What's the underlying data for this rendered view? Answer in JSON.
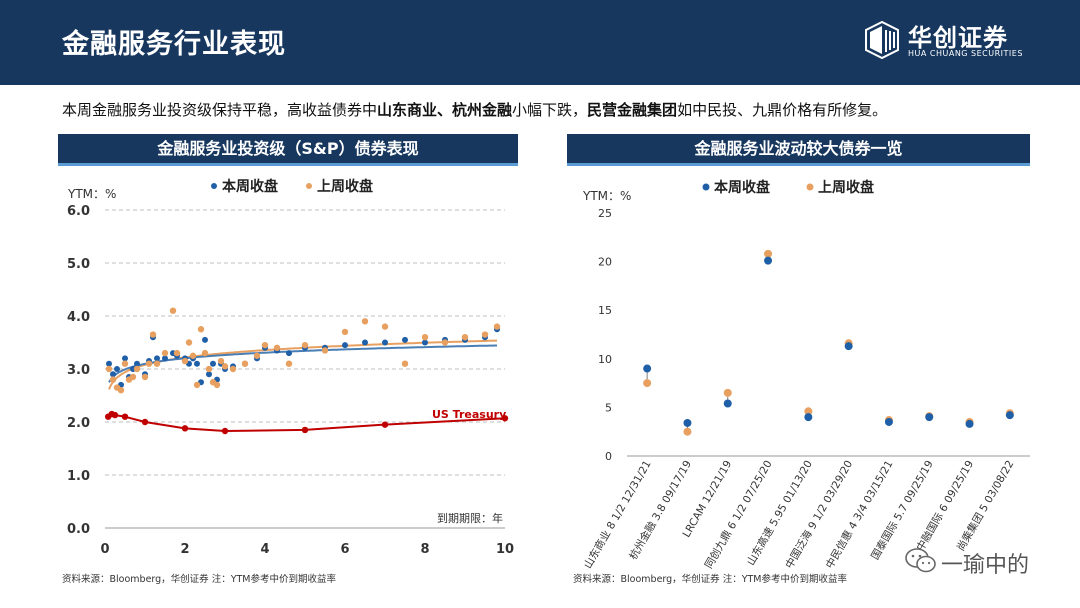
{
  "header": {
    "title": "金融服务行业表现",
    "logo_cn": "华创证券",
    "logo_en": "HUA CHUANG SECURITIES"
  },
  "summary": {
    "p1": "本周金融服务业投资级保持平稳，高收益债券中",
    "b1": "山东商业、杭州金融",
    "p2": "小幅下跌，",
    "b2": "民营金融集团",
    "p3": "如中民投、九鼎价格有所修复。"
  },
  "left_panel": {
    "title": "金融服务业投资级（S&P）债券表现",
    "source": "资料来源：Bloomberg，华创证券    注：YTM参考中价到期收益率"
  },
  "right_panel": {
    "title": "金融服务业波动较大债券一览",
    "source": "资料来源：Bloomberg，华创证券    注：YTM参考中价到期收益率"
  },
  "watermark": "一瑜中的",
  "chart_data": [
    {
      "type": "scatter",
      "ylabel": "YTM：%",
      "xlabel": "到期期限：年",
      "xlim": [
        0,
        10
      ],
      "ylim": [
        0,
        6
      ],
      "xticks": [
        "0",
        "2",
        "4",
        "6",
        "8",
        "10"
      ],
      "yticks": [
        "0.0",
        "1.0",
        "2.0",
        "3.0",
        "4.0",
        "5.0",
        "6.0"
      ],
      "legend_position": "top",
      "colors": {
        "this_week": "#1f5fa8",
        "last_week": "#e8a060",
        "treasury": "#c00000",
        "fit_this": "#4a7fb5",
        "fit_last": "#e8a060"
      },
      "series": [
        {
          "name": "本周收盘",
          "x": [
            0.1,
            0.2,
            0.3,
            0.4,
            0.5,
            0.6,
            0.7,
            0.8,
            1.0,
            1.1,
            1.2,
            1.3,
            1.5,
            1.7,
            1.8,
            2.0,
            2.1,
            2.2,
            2.3,
            2.4,
            2.5,
            2.6,
            2.7,
            2.8,
            2.9,
            3.0,
            3.2,
            3.5,
            3.8,
            4.0,
            4.3,
            4.6,
            5.0,
            5.5,
            6.0,
            6.5,
            7.0,
            7.5,
            8.0,
            8.5,
            9.0,
            9.5,
            9.8
          ],
          "values": [
            3.1,
            2.9,
            3.0,
            2.7,
            3.2,
            2.85,
            3.0,
            3.1,
            2.9,
            3.15,
            3.6,
            3.2,
            3.2,
            3.3,
            3.25,
            3.2,
            3.1,
            3.2,
            3.1,
            2.75,
            3.55,
            2.9,
            3.1,
            2.8,
            3.1,
            3.0,
            3.05,
            3.1,
            3.2,
            3.4,
            3.35,
            3.3,
            3.4,
            3.4,
            3.45,
            3.5,
            3.5,
            3.55,
            3.5,
            3.55,
            3.55,
            3.6,
            3.75
          ]
        },
        {
          "name": "上周收盘",
          "x": [
            0.1,
            0.2,
            0.3,
            0.4,
            0.5,
            0.6,
            0.7,
            0.8,
            1.0,
            1.1,
            1.2,
            1.3,
            1.5,
            1.7,
            1.8,
            2.0,
            2.1,
            2.2,
            2.3,
            2.4,
            2.5,
            2.6,
            2.7,
            2.8,
            2.9,
            3.0,
            3.2,
            3.5,
            3.8,
            4.0,
            4.3,
            4.6,
            5.0,
            5.5,
            6.0,
            6.5,
            7.0,
            7.5,
            8.0,
            8.5,
            9.0,
            9.5,
            9.8
          ],
          "values": [
            3.0,
            2.8,
            2.65,
            2.6,
            3.1,
            2.8,
            2.85,
            3.0,
            2.85,
            3.1,
            3.65,
            3.1,
            3.3,
            4.1,
            3.3,
            3.15,
            3.5,
            3.25,
            2.7,
            3.75,
            3.3,
            3.0,
            2.75,
            2.7,
            3.15,
            3.05,
            3.0,
            3.1,
            3.25,
            3.45,
            3.4,
            3.1,
            3.45,
            3.35,
            3.7,
            3.9,
            3.8,
            3.1,
            3.6,
            3.5,
            3.6,
            3.65,
            3.8
          ]
        },
        {
          "name": "US Treasury",
          "x": [
            0.08,
            0.17,
            0.25,
            0.5,
            1,
            2,
            3,
            5,
            7,
            10
          ],
          "values": [
            2.1,
            2.15,
            2.13,
            2.1,
            2.0,
            1.88,
            1.83,
            1.85,
            1.95,
            2.07
          ]
        }
      ],
      "annotations": [
        "US Treasury"
      ]
    },
    {
      "type": "scatter",
      "ylabel": "YTM：%",
      "ylim": [
        0,
        25
      ],
      "yticks": [
        "0",
        "5",
        "10",
        "15",
        "20",
        "25"
      ],
      "legend_position": "top",
      "colors": {
        "this_week": "#1f5fa8",
        "last_week": "#e8a060"
      },
      "categories": [
        "山东商业 8 1/2 12/31/21",
        "杭州金融 3.8 09/17/19",
        "LRCAM 12/21/19",
        "同创九鼎 6 1/2 07/25/20",
        "山东高速 5.95 01/13/20",
        "中国泛海 9 1/2 03/29/20",
        "中民信惠 4 3/4 03/15/21",
        "国泰国际 5.7 09/25/19",
        "中融国际 6 09/25/19",
        "尚乘集团 5 03/08/22"
      ],
      "series": [
        {
          "name": "本周收盘",
          "values": [
            9.0,
            3.4,
            5.4,
            20.1,
            4.0,
            11.3,
            3.5,
            4.0,
            3.3,
            4.2
          ]
        },
        {
          "name": "上周收盘",
          "values": [
            7.5,
            2.5,
            6.5,
            20.8,
            4.6,
            11.6,
            3.7,
            4.1,
            3.5,
            4.4
          ]
        }
      ]
    }
  ]
}
